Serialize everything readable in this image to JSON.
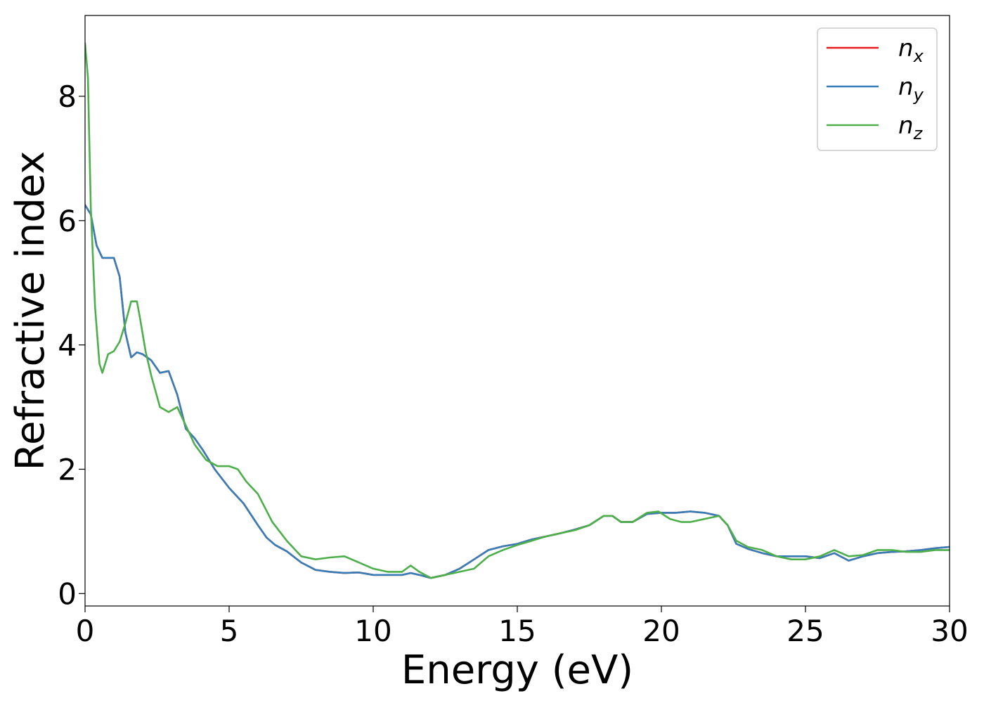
{
  "chart_data": {
    "type": "line",
    "xlabel": "Energy (eV)",
    "ylabel": "Refractive index",
    "xlim": [
      0,
      30
    ],
    "ylim": [
      -0.2,
      9.3
    ],
    "xticks": [
      0,
      5,
      10,
      15,
      20,
      25,
      30
    ],
    "xtick_labels": [
      "0",
      "5",
      "10",
      "15",
      "20",
      "25",
      "30"
    ],
    "yticks": [
      0,
      2,
      4,
      6,
      8
    ],
    "ytick_labels": [
      "0",
      "2",
      "4",
      "6",
      "8"
    ],
    "grid": false,
    "legend_position": "top-right",
    "series": [
      {
        "name": "n",
        "subscript": "x",
        "color": "#e41a1c",
        "x": [
          0,
          0.2,
          0.4,
          0.6,
          0.8,
          1.0,
          1.2,
          1.4,
          1.6,
          1.8,
          2.0,
          2.3,
          2.6,
          2.9,
          3.2,
          3.5,
          3.8,
          4.1,
          4.5,
          5.0,
          5.5,
          6.0,
          6.3,
          6.6,
          7.0,
          7.5,
          8.0,
          8.5,
          9.0,
          9.5,
          10.0,
          10.5,
          11.0,
          11.3,
          11.6,
          12.0,
          12.5,
          13.0,
          13.5,
          14.0,
          14.5,
          15.0,
          15.5,
          16.0,
          16.5,
          17.0,
          17.5,
          18.0,
          18.3,
          18.6,
          19.0,
          19.5,
          20.0,
          20.5,
          21.0,
          21.5,
          22.0,
          22.3,
          22.6,
          23.0,
          23.5,
          24.0,
          24.5,
          25.0,
          25.5,
          26.0,
          26.5,
          27.0,
          27.5,
          28.0,
          28.5,
          29.0,
          29.5,
          30.0
        ],
        "y": [
          6.25,
          6.1,
          5.6,
          5.4,
          5.4,
          5.4,
          5.1,
          4.2,
          3.8,
          3.88,
          3.85,
          3.75,
          3.55,
          3.58,
          3.2,
          2.65,
          2.5,
          2.3,
          2.0,
          1.7,
          1.45,
          1.1,
          0.9,
          0.78,
          0.68,
          0.5,
          0.38,
          0.35,
          0.33,
          0.34,
          0.3,
          0.3,
          0.3,
          0.33,
          0.3,
          0.25,
          0.3,
          0.4,
          0.55,
          0.7,
          0.76,
          0.8,
          0.87,
          0.92,
          0.97,
          1.03,
          1.1,
          1.25,
          1.25,
          1.15,
          1.15,
          1.28,
          1.3,
          1.3,
          1.32,
          1.3,
          1.25,
          1.1,
          0.8,
          0.72,
          0.65,
          0.6,
          0.6,
          0.6,
          0.57,
          0.65,
          0.53,
          0.6,
          0.65,
          0.67,
          0.68,
          0.7,
          0.73,
          0.75
        ]
      },
      {
        "name": "n",
        "subscript": "y",
        "color": "#377eb8",
        "x": [
          0,
          0.2,
          0.4,
          0.6,
          0.8,
          1.0,
          1.2,
          1.4,
          1.6,
          1.8,
          2.0,
          2.3,
          2.6,
          2.9,
          3.2,
          3.5,
          3.8,
          4.1,
          4.5,
          5.0,
          5.5,
          6.0,
          6.3,
          6.6,
          7.0,
          7.5,
          8.0,
          8.5,
          9.0,
          9.5,
          10.0,
          10.5,
          11.0,
          11.3,
          11.6,
          12.0,
          12.5,
          13.0,
          13.5,
          14.0,
          14.5,
          15.0,
          15.5,
          16.0,
          16.5,
          17.0,
          17.5,
          18.0,
          18.3,
          18.6,
          19.0,
          19.5,
          20.0,
          20.5,
          21.0,
          21.5,
          22.0,
          22.3,
          22.6,
          23.0,
          23.5,
          24.0,
          24.5,
          25.0,
          25.5,
          26.0,
          26.5,
          27.0,
          27.5,
          28.0,
          28.5,
          29.0,
          29.5,
          30.0
        ],
        "y": [
          6.25,
          6.1,
          5.6,
          5.4,
          5.4,
          5.4,
          5.1,
          4.2,
          3.8,
          3.88,
          3.85,
          3.75,
          3.55,
          3.58,
          3.2,
          2.65,
          2.5,
          2.3,
          2.0,
          1.7,
          1.45,
          1.1,
          0.9,
          0.78,
          0.68,
          0.5,
          0.38,
          0.35,
          0.33,
          0.34,
          0.3,
          0.3,
          0.3,
          0.33,
          0.3,
          0.25,
          0.3,
          0.4,
          0.55,
          0.7,
          0.76,
          0.8,
          0.87,
          0.92,
          0.97,
          1.03,
          1.1,
          1.25,
          1.25,
          1.15,
          1.15,
          1.28,
          1.3,
          1.3,
          1.32,
          1.3,
          1.25,
          1.1,
          0.8,
          0.72,
          0.65,
          0.6,
          0.6,
          0.6,
          0.57,
          0.65,
          0.53,
          0.6,
          0.65,
          0.67,
          0.68,
          0.7,
          0.73,
          0.75
        ]
      },
      {
        "name": "n",
        "subscript": "z",
        "color": "#4daf4a",
        "x": [
          0,
          0.1,
          0.2,
          0.35,
          0.5,
          0.6,
          0.8,
          1.0,
          1.2,
          1.4,
          1.6,
          1.8,
          1.9,
          2.1,
          2.3,
          2.6,
          2.9,
          3.2,
          3.5,
          3.8,
          4.2,
          4.6,
          5.0,
          5.3,
          5.6,
          6.0,
          6.5,
          7.0,
          7.5,
          8.0,
          8.5,
          9.0,
          9.5,
          10.0,
          10.5,
          11.0,
          11.3,
          11.6,
          12.0,
          12.5,
          13.0,
          13.5,
          14.0,
          14.5,
          15.0,
          15.5,
          16.0,
          16.5,
          17.0,
          17.5,
          18.0,
          18.3,
          18.6,
          19.0,
          19.5,
          19.9,
          20.3,
          20.7,
          21.0,
          21.5,
          22.0,
          22.3,
          22.6,
          23.0,
          23.5,
          24.0,
          24.5,
          25.0,
          25.5,
          26.0,
          26.5,
          27.0,
          27.5,
          28.0,
          28.5,
          29.0,
          29.5,
          30.0
        ],
        "y": [
          8.85,
          8.3,
          6.2,
          4.6,
          3.7,
          3.55,
          3.85,
          3.9,
          4.05,
          4.35,
          4.7,
          4.7,
          4.45,
          3.9,
          3.5,
          3.0,
          2.92,
          3.0,
          2.7,
          2.4,
          2.15,
          2.05,
          2.05,
          2.0,
          1.8,
          1.6,
          1.15,
          0.85,
          0.6,
          0.55,
          0.58,
          0.6,
          0.5,
          0.4,
          0.35,
          0.35,
          0.45,
          0.35,
          0.25,
          0.3,
          0.35,
          0.4,
          0.6,
          0.7,
          0.78,
          0.85,
          0.92,
          0.97,
          1.02,
          1.1,
          1.25,
          1.25,
          1.15,
          1.15,
          1.3,
          1.32,
          1.2,
          1.15,
          1.15,
          1.2,
          1.25,
          1.1,
          0.85,
          0.75,
          0.7,
          0.6,
          0.55,
          0.55,
          0.6,
          0.7,
          0.6,
          0.62,
          0.7,
          0.7,
          0.67,
          0.67,
          0.7,
          0.7
        ]
      }
    ]
  }
}
